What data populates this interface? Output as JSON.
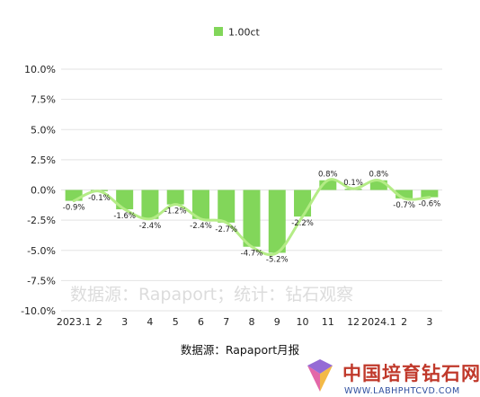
{
  "chart_data": {
    "type": "bar",
    "categories": [
      "2023.1",
      "2",
      "3",
      "4",
      "5",
      "6",
      "7",
      "8",
      "9",
      "10",
      "11",
      "12",
      "2024.1",
      "2",
      "3"
    ],
    "series": [
      {
        "name": "1.00ct",
        "values": [
          -0.9,
          -0.1,
          -1.6,
          -2.4,
          -1.2,
          -2.4,
          -2.7,
          -4.7,
          -5.2,
          -2.2,
          0.8,
          0.1,
          0.8,
          -0.7,
          -0.6
        ]
      }
    ],
    "data_labels": [
      "-0.9%",
      "-0.1%",
      "-1.6%",
      "-2.4%",
      "-1.2%",
      "-2.4%",
      "-2.7%",
      "-4.7%",
      "-5.2%",
      "-2.2%",
      "0.8%",
      "0.1%",
      "0.8%",
      "-0.7%",
      "-0.6%"
    ],
    "y_ticks": [
      "10.0%",
      "7.5%",
      "5.0%",
      "2.5%",
      "0.0%",
      "-2.5%",
      "-5.0%",
      "-7.5%",
      "-10.0%"
    ],
    "ylim": [
      -10,
      10
    ],
    "grid": true,
    "legend_position": "top-center",
    "trend_line": true,
    "colors": {
      "bar": "#82d65a",
      "trend": "#b4ec86",
      "grid": "#e3e3e3"
    }
  },
  "source_text": "数据源：Rapaport月报",
  "watermark_text": "数据源：Rapaport；统计：钻石观察",
  "brand": {
    "name_cn": "中国培育钻石网",
    "url": "WWW.LABHPHTCVD.COM",
    "logo_colors": [
      "#e0569e",
      "#f2b233",
      "#8a5bd0"
    ]
  }
}
